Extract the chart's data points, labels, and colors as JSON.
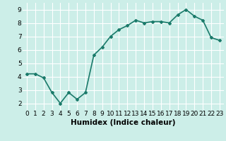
{
  "x": [
    0,
    1,
    2,
    3,
    4,
    5,
    6,
    7,
    8,
    9,
    10,
    11,
    12,
    13,
    14,
    15,
    16,
    17,
    18,
    19,
    20,
    21,
    22,
    23
  ],
  "y": [
    4.2,
    4.2,
    3.9,
    2.8,
    2.0,
    2.8,
    2.3,
    2.8,
    5.6,
    6.2,
    7.0,
    7.5,
    7.8,
    8.2,
    8.0,
    8.1,
    8.1,
    8.0,
    8.6,
    9.0,
    8.5,
    8.2,
    6.9,
    6.7
  ],
  "line_color": "#1a7a6a",
  "marker": "D",
  "marker_size": 2.0,
  "bg_color": "#cceee8",
  "grid_color": "#ffffff",
  "xlabel": "Humidex (Indice chaleur)",
  "xlabel_fontsize": 7.5,
  "ylim": [
    1.5,
    9.5
  ],
  "xlim": [
    -0.5,
    23.5
  ],
  "yticks": [
    2,
    3,
    4,
    5,
    6,
    7,
    8,
    9
  ],
  "xticks": [
    0,
    1,
    2,
    3,
    4,
    5,
    6,
    7,
    8,
    9,
    10,
    11,
    12,
    13,
    14,
    15,
    16,
    17,
    18,
    19,
    20,
    21,
    22,
    23
  ],
  "tick_fontsize": 6.5,
  "line_width": 1.2
}
